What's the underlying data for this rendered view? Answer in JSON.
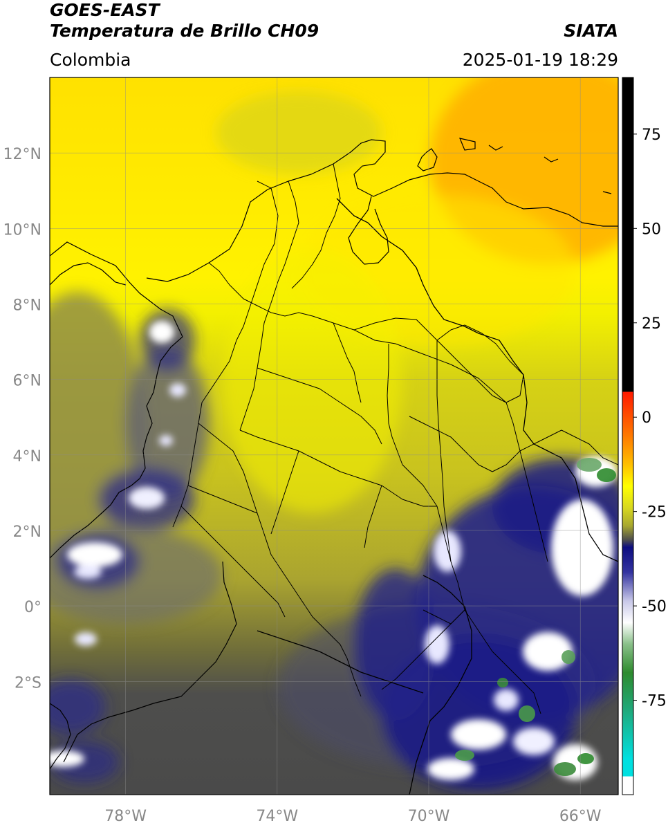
{
  "header": {
    "satellite": "GOES-EAST",
    "product": "Temperatura de Brillo CH09",
    "region": "Colombia",
    "agency": "SIATA",
    "datetime": "2025-01-19 18:29"
  },
  "map": {
    "lon_range": [
      -80,
      -65
    ],
    "lat_range": [
      -5,
      14
    ],
    "lat_ticks": [
      {
        "value": 12,
        "label": "12°N"
      },
      {
        "value": 10,
        "label": "10°N"
      },
      {
        "value": 8,
        "label": "8°N"
      },
      {
        "value": 6,
        "label": "6°N"
      },
      {
        "value": 4,
        "label": "4°N"
      },
      {
        "value": 2,
        "label": "2°N"
      },
      {
        "value": 0,
        "label": "0°"
      },
      {
        "value": -2,
        "label": "2°S"
      }
    ],
    "lon_ticks": [
      {
        "value": -78,
        "label": "78°W"
      },
      {
        "value": -74,
        "label": "74°W"
      },
      {
        "value": -70,
        "label": "70°W"
      },
      {
        "value": -66,
        "label": "66°W"
      }
    ],
    "grid": true
  },
  "colorbar": {
    "range": [
      -100,
      90
    ],
    "ticks": [
      {
        "value": 75,
        "label": "75"
      },
      {
        "value": 50,
        "label": "50"
      },
      {
        "value": 25,
        "label": "25"
      },
      {
        "value": 0,
        "label": "0"
      },
      {
        "value": -25,
        "label": "-25"
      },
      {
        "value": -50,
        "label": "-50"
      },
      {
        "value": -75,
        "label": "-75"
      }
    ],
    "colors": {
      "above_8": "#000000",
      "red": "#ff1a00",
      "orange": "#ffa500",
      "yellow": "#ffff00",
      "olive": "#a8a82e",
      "gray": "#4d4d4d",
      "navy": "#0d0d80",
      "white": "#ffffff",
      "green": "#2e8b2e",
      "teal": "#20c0a0",
      "cyan": "#00e0e0"
    }
  }
}
